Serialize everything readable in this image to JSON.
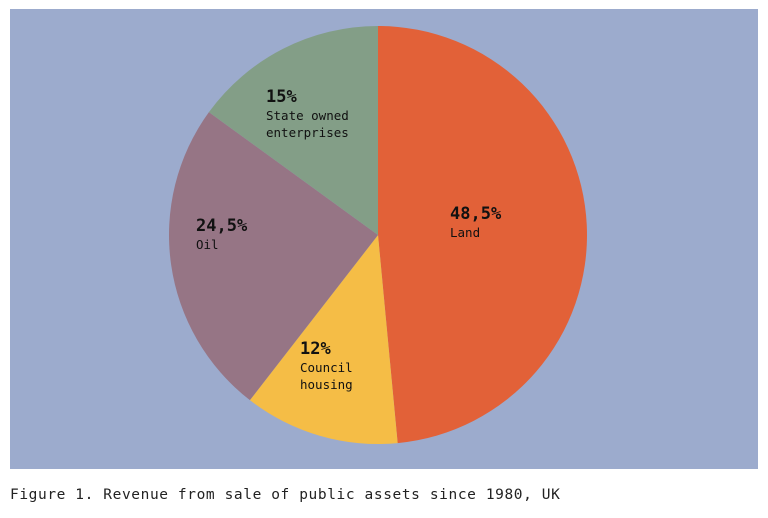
{
  "chart_data": {
    "type": "pie",
    "slices": [
      {
        "label_lines": [
          "Land"
        ],
        "value": 48.5,
        "display": "48,5%",
        "color": "#e26138"
      },
      {
        "label_lines": [
          "Council",
          "housing"
        ],
        "value": 12,
        "display": "12%",
        "color": "#f5bd46"
      },
      {
        "label_lines": [
          "Oil"
        ],
        "value": 24.5,
        "display": "24,5%",
        "color": "#967585"
      },
      {
        "label_lines": [
          "State owned",
          "enterprises"
        ],
        "value": 15,
        "display": "15%",
        "color": "#839e87"
      }
    ],
    "start_angle_deg": 0,
    "direction": "clockwise",
    "background_color": "#9cabcd"
  },
  "caption": "Figure 1. Revenue from sale of public assets since 1980, UK"
}
